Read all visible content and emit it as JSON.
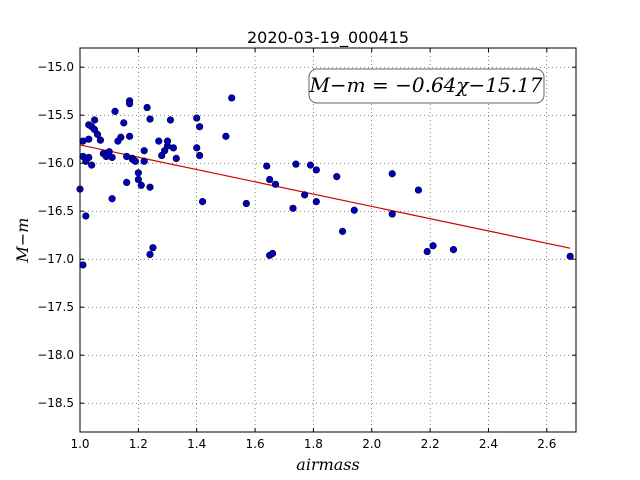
{
  "chart_data": {
    "type": "scatter",
    "title": "2020-03-19_000415",
    "xlabel": "airmass",
    "ylabel": "M−m",
    "xlim": [
      1.0,
      2.7
    ],
    "ylim": [
      -18.8,
      -14.8
    ],
    "y_inverted": true,
    "grid": true,
    "x_ticks": [
      1.0,
      1.2,
      1.4,
      1.6,
      1.8,
      2.0,
      2.2,
      2.4,
      2.6
    ],
    "x_tick_labels": [
      "1.0",
      "1.2",
      "1.4",
      "1.6",
      "1.8",
      "2.0",
      "2.2",
      "2.4",
      "2.6"
    ],
    "y_ticks": [
      -15.0,
      -15.5,
      -16.0,
      -16.5,
      -17.0,
      -17.5,
      -18.0,
      -18.5
    ],
    "y_tick_labels": [
      "−15.0",
      "−15.5",
      "−16.0",
      "−16.5",
      "−17.0",
      "−17.5",
      "−18.0",
      "−18.5"
    ],
    "annotation": "M−m = −0.64χ−15.17",
    "fit": {
      "slope": -0.64,
      "intercept": -15.17,
      "x_range": [
        1.0,
        2.68
      ],
      "color": "#cc0000"
    },
    "point_color": "#0000bb",
    "points": [
      [
        1.0,
        -16.27
      ],
      [
        1.01,
        -15.93
      ],
      [
        1.01,
        -15.77
      ],
      [
        1.02,
        -15.98
      ],
      [
        1.02,
        -16.55
      ],
      [
        1.01,
        -17.06
      ],
      [
        1.03,
        -15.6
      ],
      [
        1.03,
        -15.75
      ],
      [
        1.03,
        -15.94
      ],
      [
        1.04,
        -15.62
      ],
      [
        1.04,
        -16.02
      ],
      [
        1.05,
        -15.55
      ],
      [
        1.05,
        -15.65
      ],
      [
        1.06,
        -15.7
      ],
      [
        1.07,
        -15.76
      ],
      [
        1.08,
        -15.9
      ],
      [
        1.09,
        -15.93
      ],
      [
        1.1,
        -15.88
      ],
      [
        1.11,
        -15.94
      ],
      [
        1.11,
        -16.37
      ],
      [
        1.12,
        -15.46
      ],
      [
        1.13,
        -15.77
      ],
      [
        1.14,
        -15.73
      ],
      [
        1.15,
        -15.58
      ],
      [
        1.16,
        -15.93
      ],
      [
        1.16,
        -16.2
      ],
      [
        1.17,
        -15.35
      ],
      [
        1.17,
        -15.38
      ],
      [
        1.17,
        -15.72
      ],
      [
        1.18,
        -15.95
      ],
      [
        1.18,
        -15.96
      ],
      [
        1.19,
        -15.98
      ],
      [
        1.2,
        -16.1
      ],
      [
        1.2,
        -16.17
      ],
      [
        1.21,
        -16.23
      ],
      [
        1.22,
        -15.98
      ],
      [
        1.22,
        -15.87
      ],
      [
        1.23,
        -15.42
      ],
      [
        1.24,
        -15.54
      ],
      [
        1.24,
        -16.25
      ],
      [
        1.24,
        -16.95
      ],
      [
        1.25,
        -16.88
      ],
      [
        1.27,
        -15.77
      ],
      [
        1.28,
        -15.92
      ],
      [
        1.29,
        -15.87
      ],
      [
        1.3,
        -15.82
      ],
      [
        1.3,
        -15.77
      ],
      [
        1.31,
        -15.55
      ],
      [
        1.32,
        -15.84
      ],
      [
        1.33,
        -15.95
      ],
      [
        1.4,
        -15.53
      ],
      [
        1.4,
        -15.84
      ],
      [
        1.41,
        -15.62
      ],
      [
        1.41,
        -15.92
      ],
      [
        1.42,
        -16.4
      ],
      [
        1.5,
        -15.72
      ],
      [
        1.52,
        -15.32
      ],
      [
        1.57,
        -16.42
      ],
      [
        1.64,
        -16.03
      ],
      [
        1.65,
        -16.17
      ],
      [
        1.65,
        -16.96
      ],
      [
        1.66,
        -16.94
      ],
      [
        1.67,
        -16.22
      ],
      [
        1.73,
        -16.47
      ],
      [
        1.74,
        -16.01
      ],
      [
        1.77,
        -16.33
      ],
      [
        1.79,
        -16.02
      ],
      [
        1.81,
        -16.07
      ],
      [
        1.81,
        -16.4
      ],
      [
        1.88,
        -16.14
      ],
      [
        1.9,
        -16.71
      ],
      [
        1.94,
        -16.49
      ],
      [
        2.07,
        -16.11
      ],
      [
        2.07,
        -16.53
      ],
      [
        2.16,
        -16.28
      ],
      [
        2.19,
        -16.92
      ],
      [
        2.21,
        -16.86
      ],
      [
        2.28,
        -16.9
      ],
      [
        2.68,
        -16.97
      ]
    ]
  }
}
